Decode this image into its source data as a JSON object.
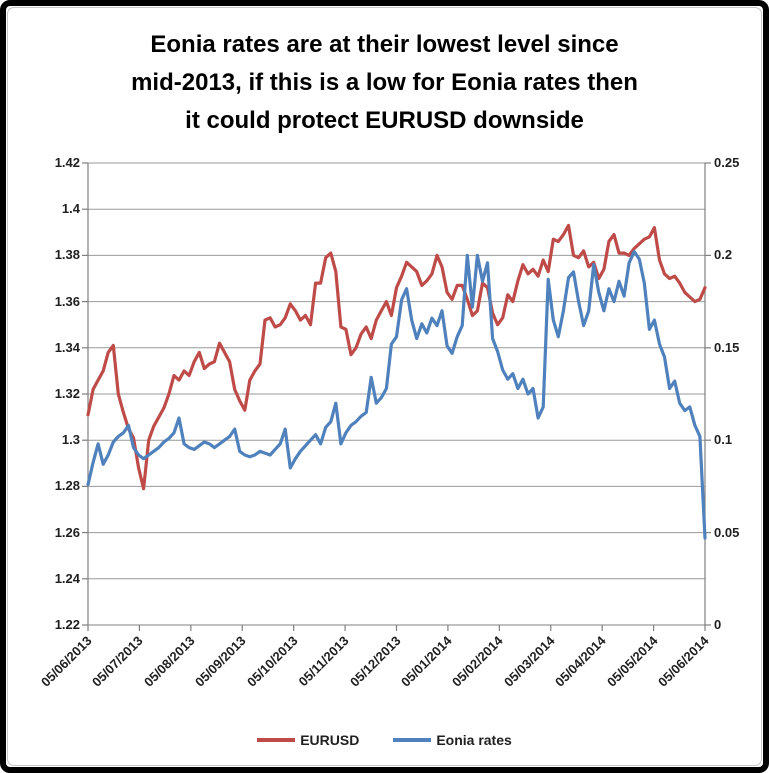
{
  "title": {
    "lines": [
      "Eonia rates are at their lowest level since",
      "mid-2013, if this is a low for Eonia rates then",
      "it could protect EURUSD downside"
    ]
  },
  "colors": {
    "eurusd_line": "#BE4B48",
    "eonia_line": "#4F81BD",
    "gridline": "#999999",
    "axis_line": "#808080",
    "tick_label": "#1f1f1f",
    "title_text": "#000000",
    "frame": "#000000"
  },
  "chart_data": {
    "type": "line",
    "title": "Eonia rates are at their lowest level since mid-2013, if this is a low for Eonia rates then it could protect EURUSD downside",
    "grid": true,
    "legend_position": "bottom",
    "x_tick_labels": [
      "05/06/2013",
      "05/07/2013",
      "05/08/2013",
      "05/09/2013",
      "05/10/2013",
      "05/11/2013",
      "05/12/2013",
      "05/01/2014",
      "05/02/2014",
      "05/03/2014",
      "05/04/2014",
      "05/05/2014",
      "05/06/2014"
    ],
    "left_axis": {
      "min": 1.22,
      "max": 1.42,
      "step": 0.02,
      "tick_labels": [
        "1.42",
        "1.4",
        "1.38",
        "1.36",
        "1.34",
        "1.32",
        "1.3",
        "1.28",
        "1.26",
        "1.24",
        "1.22"
      ]
    },
    "right_axis": {
      "min": 0,
      "max": 0.25,
      "step": 0.05,
      "tick_labels": [
        "0.25",
        "0.2",
        "0.15",
        "0.1",
        "0.05",
        "0"
      ]
    },
    "series": [
      {
        "name": "EURUSD",
        "color": "#BE4B48",
        "axis": "left",
        "values": [
          1.311,
          1.322,
          1.326,
          1.33,
          1.338,
          1.341,
          1.32,
          1.312,
          1.305,
          1.301,
          1.288,
          1.279,
          1.3,
          1.306,
          1.31,
          1.314,
          1.32,
          1.328,
          1.326,
          1.33,
          1.328,
          1.334,
          1.338,
          1.331,
          1.333,
          1.334,
          1.342,
          1.338,
          1.334,
          1.322,
          1.317,
          1.313,
          1.326,
          1.33,
          1.333,
          1.352,
          1.353,
          1.349,
          1.35,
          1.353,
          1.359,
          1.356,
          1.352,
          1.354,
          1.35,
          1.368,
          1.368,
          1.379,
          1.381,
          1.373,
          1.349,
          1.348,
          1.337,
          1.34,
          1.346,
          1.349,
          1.344,
          1.352,
          1.356,
          1.36,
          1.354,
          1.366,
          1.371,
          1.377,
          1.375,
          1.373,
          1.367,
          1.369,
          1.372,
          1.38,
          1.375,
          1.364,
          1.361,
          1.367,
          1.367,
          1.361,
          1.354,
          1.356,
          1.368,
          1.366,
          1.355,
          1.35,
          1.353,
          1.363,
          1.36,
          1.369,
          1.376,
          1.372,
          1.374,
          1.371,
          1.378,
          1.373,
          1.387,
          1.386,
          1.389,
          1.393,
          1.38,
          1.379,
          1.382,
          1.375,
          1.377,
          1.37,
          1.374,
          1.386,
          1.389,
          1.381,
          1.381,
          1.38,
          1.383,
          1.385,
          1.387,
          1.388,
          1.392,
          1.378,
          1.372,
          1.37,
          1.371,
          1.368,
          1.364,
          1.362,
          1.36,
          1.361,
          1.366
        ]
      },
      {
        "name": "Eonia rates",
        "color": "#4F81BD",
        "axis": "right",
        "values": [
          0.076,
          0.088,
          0.098,
          0.087,
          0.092,
          0.099,
          0.102,
          0.104,
          0.108,
          0.096,
          0.092,
          0.09,
          0.092,
          0.094,
          0.096,
          0.099,
          0.101,
          0.104,
          0.112,
          0.098,
          0.096,
          0.095,
          0.097,
          0.099,
          0.098,
          0.096,
          0.098,
          0.1,
          0.102,
          0.106,
          0.094,
          0.092,
          0.091,
          0.092,
          0.094,
          0.093,
          0.092,
          0.095,
          0.098,
          0.106,
          0.085,
          0.09,
          0.094,
          0.097,
          0.1,
          0.103,
          0.098,
          0.107,
          0.11,
          0.12,
          0.098,
          0.104,
          0.108,
          0.11,
          0.113,
          0.115,
          0.134,
          0.12,
          0.123,
          0.128,
          0.152,
          0.156,
          0.176,
          0.182,
          0.165,
          0.155,
          0.163,
          0.158,
          0.166,
          0.162,
          0.17,
          0.151,
          0.147,
          0.156,
          0.162,
          0.2,
          0.172,
          0.2,
          0.186,
          0.196,
          0.155,
          0.148,
          0.138,
          0.133,
          0.136,
          0.128,
          0.133,
          0.125,
          0.128,
          0.112,
          0.118,
          0.187,
          0.165,
          0.156,
          0.17,
          0.188,
          0.191,
          0.175,
          0.162,
          0.17,
          0.195,
          0.18,
          0.17,
          0.182,
          0.175,
          0.186,
          0.178,
          0.196,
          0.202,
          0.198,
          0.185,
          0.16,
          0.165,
          0.152,
          0.145,
          0.128,
          0.132,
          0.12,
          0.116,
          0.118,
          0.108,
          0.102,
          0.047
        ]
      }
    ]
  }
}
